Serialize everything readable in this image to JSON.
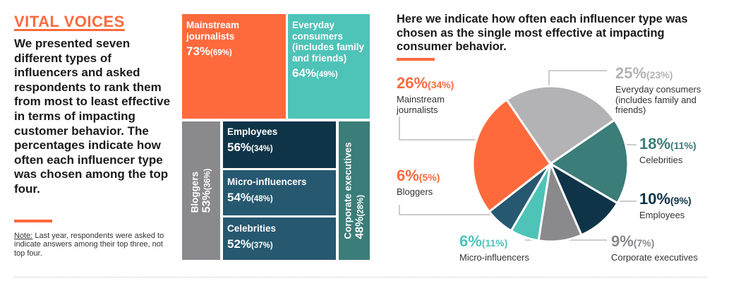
{
  "title": "VITAL VOICES",
  "intro": "We presented seven different types of influencers and asked respondents to rank them from most to least effective in terms of impacting customer behavior. The percentages indicate how often each influencer type was chosen among the top four.",
  "note": {
    "label": "Note:",
    "text": " Last year, respondents were asked to indicate answers among their top three, not top four."
  },
  "pie_heading": "Here we indicate how often each influencer type was chosen as the single most effective at impacting consumer behavior.",
  "colors": {
    "orange": "#ff6a3d",
    "teal_light": "#4ec3b8",
    "grey": "#8a8a8d",
    "navy": "#0f3448",
    "blue": "#26586f",
    "teal_dark": "#3b7d78",
    "light_grey": "#b3b3b5"
  },
  "chart_data": [
    {
      "type": "treemap",
      "items": [
        {
          "label": "Mainstream journalists",
          "value": 73,
          "previous": 69,
          "pct": "73%",
          "prev": "(69%)",
          "color": "#ff6a3d"
        },
        {
          "label": "Everyday consumers (includes family and friends)",
          "value": 64,
          "previous": 49,
          "pct": "64%",
          "prev": "(49%)",
          "color": "#4ec3b8"
        },
        {
          "label": "Employees",
          "value": 56,
          "previous": 34,
          "pct": "56%",
          "prev": "(34%)",
          "color": "#0f3448"
        },
        {
          "label": "Micro-influencers",
          "value": 54,
          "previous": 48,
          "pct": "54%",
          "prev": "(48%)",
          "color": "#26586f"
        },
        {
          "label": "Bloggers",
          "value": 53,
          "previous": 36,
          "pct": "53%",
          "prev": "(36%)",
          "color": "#8a8a8d"
        },
        {
          "label": "Celebrities",
          "value": 52,
          "previous": 37,
          "pct": "52%",
          "prev": "(37%)",
          "color": "#26586f"
        },
        {
          "label": "Corporate executives",
          "value": 48,
          "previous": 28,
          "pct": "48%",
          "prev": "(28%)",
          "color": "#3b7d78"
        }
      ]
    },
    {
      "type": "pie",
      "slices": [
        {
          "label": "Everyday consumers (includes family and friends)",
          "value": 25,
          "previous": 23,
          "pct": "25%",
          "prev": "(23%)",
          "color": "#b3b3b5"
        },
        {
          "label": "Celebrities",
          "value": 18,
          "previous": 11,
          "pct": "18%",
          "prev": "(11%)",
          "color": "#3b7d78"
        },
        {
          "label": "Employees",
          "value": 10,
          "previous": 9,
          "pct": "10%",
          "prev": "(9%)",
          "color": "#0f3448"
        },
        {
          "label": "Corporate executives",
          "value": 9,
          "previous": 7,
          "pct": "9%",
          "prev": "(7%)",
          "color": "#8a8a8d"
        },
        {
          "label": "Micro-influencers",
          "value": 6,
          "previous": 11,
          "pct": "6%",
          "prev": "(11%)",
          "color": "#4ec3b8"
        },
        {
          "label": "Bloggers",
          "value": 6,
          "previous": 5,
          "pct": "6%",
          "prev": "(5%)",
          "color": "#26586f"
        },
        {
          "label": "Mainstream journalists",
          "value": 26,
          "previous": 34,
          "pct": "26%",
          "prev": "(34%)",
          "color": "#ff6a3d"
        }
      ]
    }
  ]
}
